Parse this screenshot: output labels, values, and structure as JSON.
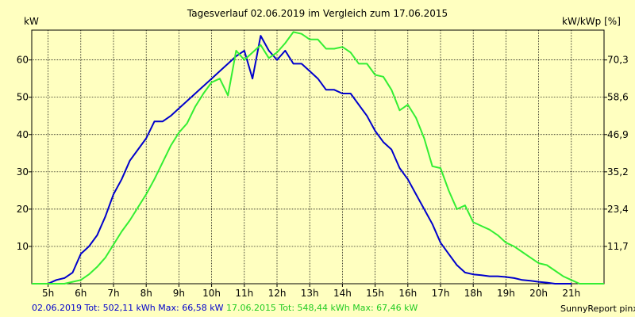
{
  "chart_data": {
    "type": "line",
    "title": "Tagesverlauf 02.06.2019 im Vergleich zum 17.06.2015",
    "ylabel_left": "kW",
    "ylabel_right": "kW/kWp [%]",
    "xlim": [
      4.5,
      22.0
    ],
    "ylim": [
      0,
      68
    ],
    "x_ticks": [
      {
        "x": 5,
        "label": "5h"
      },
      {
        "x": 6,
        "label": "6h"
      },
      {
        "x": 7,
        "label": "7h"
      },
      {
        "x": 8,
        "label": "8h"
      },
      {
        "x": 9,
        "label": "9h"
      },
      {
        "x": 10,
        "label": "10h"
      },
      {
        "x": 11,
        "label": "11h"
      },
      {
        "x": 12,
        "label": "12h"
      },
      {
        "x": 13,
        "label": "13h"
      },
      {
        "x": 14,
        "label": "14h"
      },
      {
        "x": 15,
        "label": "15h"
      },
      {
        "x": 16,
        "label": "16h"
      },
      {
        "x": 17,
        "label": "17h"
      },
      {
        "x": 18,
        "label": "18h"
      },
      {
        "x": 19,
        "label": "19h"
      },
      {
        "x": 20,
        "label": "20h"
      },
      {
        "x": 21,
        "label": "21h"
      }
    ],
    "y_ticks_left": [
      10,
      20,
      30,
      40,
      50,
      60
    ],
    "y_ticks_right": [
      {
        "y": 10,
        "label": "11,7"
      },
      {
        "y": 20,
        "label": "23,4"
      },
      {
        "y": 30,
        "label": "35,2"
      },
      {
        "y": 40,
        "label": "46,9"
      },
      {
        "y": 50,
        "label": "58,6"
      },
      {
        "y": 60,
        "label": "70,3"
      }
    ],
    "grid": true,
    "series": [
      {
        "name": "02.06.2019",
        "color": "#0000cc",
        "x": [
          4.5,
          5.0,
          5.25,
          5.5,
          5.75,
          6.0,
          6.25,
          6.5,
          6.75,
          7.0,
          7.25,
          7.5,
          7.75,
          8.0,
          8.25,
          8.5,
          8.75,
          9.0,
          9.25,
          9.5,
          9.75,
          10.0,
          10.25,
          10.5,
          10.75,
          11.0,
          11.25,
          11.5,
          11.75,
          12.0,
          12.25,
          12.5,
          12.75,
          13.0,
          13.25,
          13.5,
          13.75,
          14.0,
          14.25,
          14.5,
          14.75,
          15.0,
          15.25,
          15.5,
          15.75,
          16.0,
          16.25,
          16.5,
          16.75,
          17.0,
          17.25,
          17.5,
          17.75,
          18.0,
          18.25,
          18.5,
          18.75,
          19.0,
          19.25,
          19.5,
          19.75,
          20.0,
          20.25,
          20.5,
          20.75,
          21.0
        ],
        "y": [
          0,
          0,
          1,
          1.5,
          3,
          8,
          10,
          13,
          18,
          24,
          28,
          33,
          36,
          39,
          43.5,
          43.5,
          45,
          47,
          49,
          51,
          53,
          55,
          57,
          59,
          61,
          62.5,
          55,
          66.5,
          62.5,
          60,
          62.5,
          59,
          59,
          57,
          55,
          52,
          52,
          51,
          51,
          48,
          45,
          41,
          38,
          36,
          31,
          28,
          24,
          20,
          16,
          11,
          8,
          5,
          3,
          2.5,
          2.3,
          2,
          2,
          1.8,
          1.5,
          1,
          0.8,
          0.5,
          0.3,
          0,
          0,
          0
        ]
      },
      {
        "name": "17.06.2015",
        "color": "#33ee33",
        "x": [
          4.5,
          5.5,
          5.75,
          6.0,
          6.25,
          6.5,
          6.75,
          7.0,
          7.25,
          7.5,
          7.75,
          8.0,
          8.25,
          8.5,
          8.75,
          9.0,
          9.25,
          9.5,
          9.75,
          10.0,
          10.25,
          10.5,
          10.75,
          11.0,
          11.25,
          11.5,
          11.75,
          12.0,
          12.25,
          12.5,
          12.75,
          13.0,
          13.25,
          13.5,
          13.75,
          14.0,
          14.25,
          14.5,
          14.75,
          15.0,
          15.25,
          15.5,
          15.75,
          16.0,
          16.25,
          16.5,
          16.75,
          17.0,
          17.25,
          17.5,
          17.75,
          18.0,
          18.25,
          18.5,
          18.75,
          19.0,
          19.25,
          19.5,
          19.75,
          20.0,
          20.25,
          20.5,
          20.75,
          21.0,
          21.25,
          21.5,
          22.0
        ],
        "y": [
          0,
          0,
          0.5,
          1,
          2.5,
          4.5,
          7,
          10.5,
          14,
          17,
          20.5,
          24,
          28,
          32.5,
          37,
          40.5,
          43,
          47.5,
          51,
          54,
          55,
          50.5,
          62.5,
          60,
          62,
          64,
          60.5,
          62,
          64.5,
          67.5,
          67,
          65.5,
          65.5,
          63,
          63,
          63.5,
          62,
          59,
          59,
          56,
          55.5,
          52,
          46.5,
          48,
          44.5,
          39,
          31.5,
          31,
          25,
          20,
          21,
          16.5,
          15.5,
          14.5,
          13,
          11,
          10,
          8.5,
          7,
          5.5,
          5,
          3.5,
          2,
          1,
          0,
          0,
          0
        ]
      }
    ],
    "legend": "02.06.2019 Tot: 502,11 kWh Max: 66,58 kW 17.06.2015 Tot: 548,44 kWh Max: 67,46 kW",
    "credit": "SunnyReport pinxit"
  }
}
